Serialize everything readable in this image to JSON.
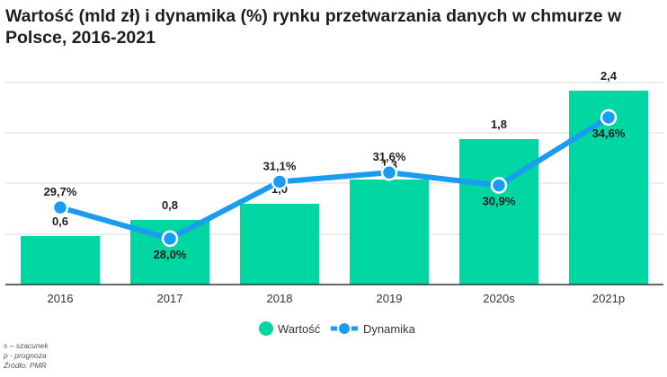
{
  "title": "Wartość (mld zł) i dynamika (%) rynku przetwarzania danych w chmurze w Polsce, 2016-2021",
  "chart_data": {
    "type": "bar",
    "title": "Wartość (mld zł) i dynamika (%) rynku przetwarzania danych w chmurze w Polsce, 2016-2021",
    "categories": [
      "2016",
      "2017",
      "2018",
      "2019",
      "2020s",
      "2021p"
    ],
    "series": [
      {
        "name": "Wartość",
        "type": "bar",
        "values": [
          0.6,
          0.8,
          1.0,
          1.3,
          1.8,
          2.4
        ],
        "labels": [
          "0,6",
          "0,8",
          "1,0",
          "1,3",
          "1,8",
          "2,4"
        ],
        "color": "#00d6a1"
      },
      {
        "name": "Dynamika",
        "type": "line",
        "values": [
          29.7,
          28.0,
          31.1,
          31.6,
          30.9,
          34.6
        ],
        "labels": [
          "29,7%",
          "28,0%",
          "31,1%",
          "31,6%",
          "30,9%",
          "34,6%"
        ],
        "color": "#1a9cf0"
      }
    ],
    "ylim": [
      0,
      2.5
    ],
    "y2lim": [
      25.5,
      36.5
    ],
    "grid": true,
    "legend": "bottom-center"
  },
  "footnotes": [
    "s – szacunek",
    "p - prognoza",
    "Źródło: PMR"
  ],
  "colors": {
    "bar": "#00d6a1",
    "line": "#1a9cf0",
    "grid": "#d9d9d9",
    "axis": "#333333",
    "text": "#1e1e1e"
  }
}
